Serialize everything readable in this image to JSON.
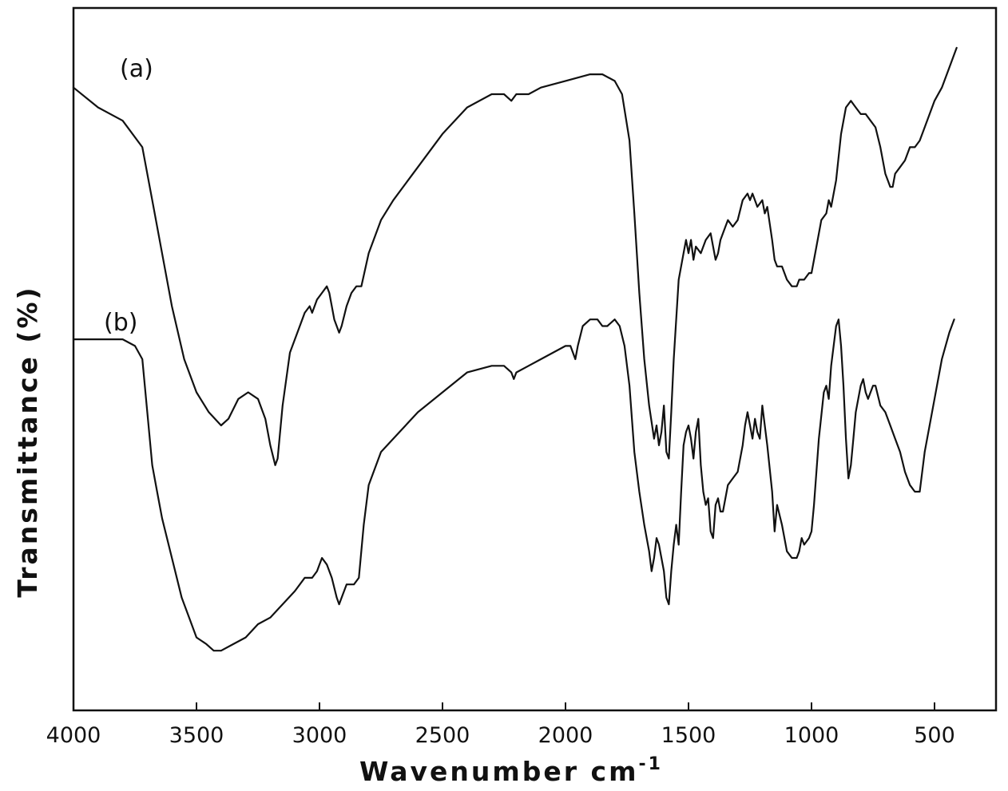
{
  "chart_data": {
    "type": "line",
    "title": "",
    "xlabel": "Wavenumber cm",
    "xlabel_superscript": "-1",
    "ylabel": "Transmittance (%)",
    "xlim": [
      4000,
      250
    ],
    "x_reversed": true,
    "x_ticks": [
      4000,
      3500,
      3000,
      2500,
      2000,
      1500,
      1000,
      500
    ],
    "x_tick_labels": [
      "4000",
      "3500",
      "3000",
      "2500",
      "2000",
      "1500",
      "1000",
      "500"
    ],
    "ylim": [
      0,
      100
    ],
    "y_ticks_shown": false,
    "grid": false,
    "line_color": "#111111",
    "series": [
      {
        "name": "(a)",
        "points": [
          [
            4000,
            91
          ],
          [
            3900,
            88
          ],
          [
            3800,
            86
          ],
          [
            3720,
            82
          ],
          [
            3680,
            74
          ],
          [
            3640,
            66
          ],
          [
            3600,
            58
          ],
          [
            3550,
            50
          ],
          [
            3500,
            45
          ],
          [
            3450,
            42
          ],
          [
            3400,
            40
          ],
          [
            3370,
            41
          ],
          [
            3330,
            44
          ],
          [
            3290,
            45
          ],
          [
            3250,
            44
          ],
          [
            3220,
            41
          ],
          [
            3200,
            37
          ],
          [
            3180,
            34
          ],
          [
            3170,
            35
          ],
          [
            3150,
            43
          ],
          [
            3120,
            51
          ],
          [
            3090,
            54
          ],
          [
            3060,
            57
          ],
          [
            3040,
            58
          ],
          [
            3030,
            57
          ],
          [
            3010,
            59
          ],
          [
            2990,
            60
          ],
          [
            2970,
            61
          ],
          [
            2960,
            60
          ],
          [
            2940,
            56
          ],
          [
            2920,
            54
          ],
          [
            2910,
            55
          ],
          [
            2890,
            58
          ],
          [
            2870,
            60
          ],
          [
            2850,
            61
          ],
          [
            2830,
            61
          ],
          [
            2800,
            66
          ],
          [
            2750,
            71
          ],
          [
            2700,
            74
          ],
          [
            2600,
            79
          ],
          [
            2500,
            84
          ],
          [
            2400,
            88
          ],
          [
            2300,
            90
          ],
          [
            2250,
            90
          ],
          [
            2220,
            89
          ],
          [
            2200,
            90
          ],
          [
            2150,
            90
          ],
          [
            2100,
            91
          ],
          [
            2000,
            92
          ],
          [
            1900,
            93
          ],
          [
            1850,
            93
          ],
          [
            1800,
            92
          ],
          [
            1770,
            90
          ],
          [
            1740,
            83
          ],
          [
            1720,
            72
          ],
          [
            1700,
            60
          ],
          [
            1680,
            50
          ],
          [
            1660,
            43
          ],
          [
            1640,
            38
          ],
          [
            1630,
            40
          ],
          [
            1620,
            37
          ],
          [
            1610,
            39
          ],
          [
            1600,
            43
          ],
          [
            1590,
            36
          ],
          [
            1580,
            35
          ],
          [
            1570,
            42
          ],
          [
            1560,
            50
          ],
          [
            1550,
            56
          ],
          [
            1540,
            62
          ],
          [
            1520,
            66
          ],
          [
            1510,
            68
          ],
          [
            1500,
            66
          ],
          [
            1490,
            68
          ],
          [
            1480,
            65
          ],
          [
            1470,
            67
          ],
          [
            1450,
            66
          ],
          [
            1430,
            68
          ],
          [
            1410,
            69
          ],
          [
            1400,
            67
          ],
          [
            1390,
            65
          ],
          [
            1380,
            66
          ],
          [
            1370,
            68
          ],
          [
            1350,
            70
          ],
          [
            1340,
            71
          ],
          [
            1320,
            70
          ],
          [
            1300,
            71
          ],
          [
            1280,
            74
          ],
          [
            1260,
            75
          ],
          [
            1250,
            74
          ],
          [
            1240,
            75
          ],
          [
            1220,
            73
          ],
          [
            1200,
            74
          ],
          [
            1190,
            72
          ],
          [
            1180,
            73
          ],
          [
            1160,
            68
          ],
          [
            1150,
            65
          ],
          [
            1140,
            64
          ],
          [
            1120,
            64
          ],
          [
            1100,
            62
          ],
          [
            1080,
            61
          ],
          [
            1060,
            61
          ],
          [
            1050,
            62
          ],
          [
            1040,
            62
          ],
          [
            1030,
            62
          ],
          [
            1010,
            63
          ],
          [
            1000,
            63
          ],
          [
            990,
            65
          ],
          [
            960,
            71
          ],
          [
            940,
            72
          ],
          [
            930,
            74
          ],
          [
            920,
            73
          ],
          [
            900,
            77
          ],
          [
            880,
            84
          ],
          [
            860,
            88
          ],
          [
            840,
            89
          ],
          [
            820,
            88
          ],
          [
            800,
            87
          ],
          [
            780,
            87
          ],
          [
            760,
            86
          ],
          [
            740,
            85
          ],
          [
            720,
            82
          ],
          [
            700,
            78
          ],
          [
            690,
            77
          ],
          [
            680,
            76
          ],
          [
            670,
            76
          ],
          [
            660,
            78
          ],
          [
            640,
            79
          ],
          [
            620,
            80
          ],
          [
            600,
            82
          ],
          [
            580,
            82
          ],
          [
            560,
            83
          ],
          [
            540,
            85
          ],
          [
            500,
            89
          ],
          [
            470,
            91
          ],
          [
            440,
            94
          ],
          [
            420,
            96
          ],
          [
            410,
            97
          ]
        ]
      },
      {
        "name": "(b)",
        "points": [
          [
            4000,
            53
          ],
          [
            3900,
            53
          ],
          [
            3800,
            53
          ],
          [
            3750,
            52
          ],
          [
            3720,
            50
          ],
          [
            3700,
            42
          ],
          [
            3680,
            34
          ],
          [
            3660,
            30
          ],
          [
            3640,
            26
          ],
          [
            3600,
            20
          ],
          [
            3560,
            14
          ],
          [
            3530,
            11
          ],
          [
            3500,
            8
          ],
          [
            3460,
            7
          ],
          [
            3430,
            6
          ],
          [
            3400,
            6
          ],
          [
            3350,
            7
          ],
          [
            3300,
            8
          ],
          [
            3250,
            10
          ],
          [
            3200,
            11
          ],
          [
            3150,
            13
          ],
          [
            3100,
            15
          ],
          [
            3060,
            17
          ],
          [
            3030,
            17
          ],
          [
            3010,
            18
          ],
          [
            3000,
            19
          ],
          [
            2990,
            20
          ],
          [
            2970,
            19
          ],
          [
            2950,
            17
          ],
          [
            2930,
            14
          ],
          [
            2920,
            13
          ],
          [
            2910,
            14
          ],
          [
            2890,
            16
          ],
          [
            2860,
            16
          ],
          [
            2840,
            17
          ],
          [
            2820,
            25
          ],
          [
            2800,
            31
          ],
          [
            2750,
            36
          ],
          [
            2700,
            38
          ],
          [
            2600,
            42
          ],
          [
            2500,
            45
          ],
          [
            2400,
            48
          ],
          [
            2300,
            49
          ],
          [
            2250,
            49
          ],
          [
            2220,
            48
          ],
          [
            2210,
            47
          ],
          [
            2200,
            48
          ],
          [
            2150,
            49
          ],
          [
            2100,
            50
          ],
          [
            2000,
            52
          ],
          [
            1980,
            52
          ],
          [
            1960,
            50
          ],
          [
            1950,
            52
          ],
          [
            1930,
            55
          ],
          [
            1900,
            56
          ],
          [
            1870,
            56
          ],
          [
            1850,
            55
          ],
          [
            1830,
            55
          ],
          [
            1800,
            56
          ],
          [
            1780,
            55
          ],
          [
            1760,
            52
          ],
          [
            1740,
            46
          ],
          [
            1720,
            36
          ],
          [
            1700,
            30
          ],
          [
            1680,
            25
          ],
          [
            1660,
            21
          ],
          [
            1650,
            18
          ],
          [
            1640,
            20
          ],
          [
            1630,
            23
          ],
          [
            1620,
            22
          ],
          [
            1610,
            20
          ],
          [
            1600,
            18
          ],
          [
            1590,
            14
          ],
          [
            1580,
            13
          ],
          [
            1570,
            18
          ],
          [
            1560,
            22
          ],
          [
            1550,
            25
          ],
          [
            1540,
            22
          ],
          [
            1530,
            30
          ],
          [
            1520,
            37
          ],
          [
            1510,
            39
          ],
          [
            1500,
            40
          ],
          [
            1490,
            38
          ],
          [
            1480,
            35
          ],
          [
            1470,
            39
          ],
          [
            1460,
            41
          ],
          [
            1450,
            34
          ],
          [
            1440,
            30
          ],
          [
            1430,
            28
          ],
          [
            1420,
            29
          ],
          [
            1410,
            24
          ],
          [
            1400,
            23
          ],
          [
            1390,
            28
          ],
          [
            1380,
            29
          ],
          [
            1370,
            27
          ],
          [
            1360,
            27
          ],
          [
            1340,
            31
          ],
          [
            1320,
            32
          ],
          [
            1300,
            33
          ],
          [
            1280,
            37
          ],
          [
            1270,
            40
          ],
          [
            1260,
            42
          ],
          [
            1250,
            40
          ],
          [
            1240,
            38
          ],
          [
            1230,
            41
          ],
          [
            1220,
            39
          ],
          [
            1210,
            38
          ],
          [
            1200,
            43
          ],
          [
            1190,
            40
          ],
          [
            1180,
            37
          ],
          [
            1160,
            30
          ],
          [
            1150,
            24
          ],
          [
            1140,
            28
          ],
          [
            1120,
            25
          ],
          [
            1100,
            21
          ],
          [
            1080,
            20
          ],
          [
            1060,
            20
          ],
          [
            1050,
            21
          ],
          [
            1040,
            23
          ],
          [
            1030,
            22
          ],
          [
            1010,
            23
          ],
          [
            1000,
            24
          ],
          [
            990,
            28
          ],
          [
            970,
            38
          ],
          [
            950,
            45
          ],
          [
            940,
            46
          ],
          [
            930,
            44
          ],
          [
            920,
            49
          ],
          [
            900,
            55
          ],
          [
            890,
            56
          ],
          [
            880,
            52
          ],
          [
            870,
            46
          ],
          [
            860,
            38
          ],
          [
            850,
            32
          ],
          [
            840,
            34
          ],
          [
            830,
            38
          ],
          [
            820,
            42
          ],
          [
            800,
            46
          ],
          [
            790,
            47
          ],
          [
            780,
            45
          ],
          [
            770,
            44
          ],
          [
            760,
            45
          ],
          [
            750,
            46
          ],
          [
            740,
            46
          ],
          [
            720,
            43
          ],
          [
            700,
            42
          ],
          [
            680,
            40
          ],
          [
            660,
            38
          ],
          [
            640,
            36
          ],
          [
            620,
            33
          ],
          [
            600,
            31
          ],
          [
            580,
            30
          ],
          [
            560,
            30
          ],
          [
            540,
            36
          ],
          [
            500,
            44
          ],
          [
            470,
            50
          ],
          [
            440,
            54
          ],
          [
            420,
            56
          ]
        ]
      }
    ]
  }
}
